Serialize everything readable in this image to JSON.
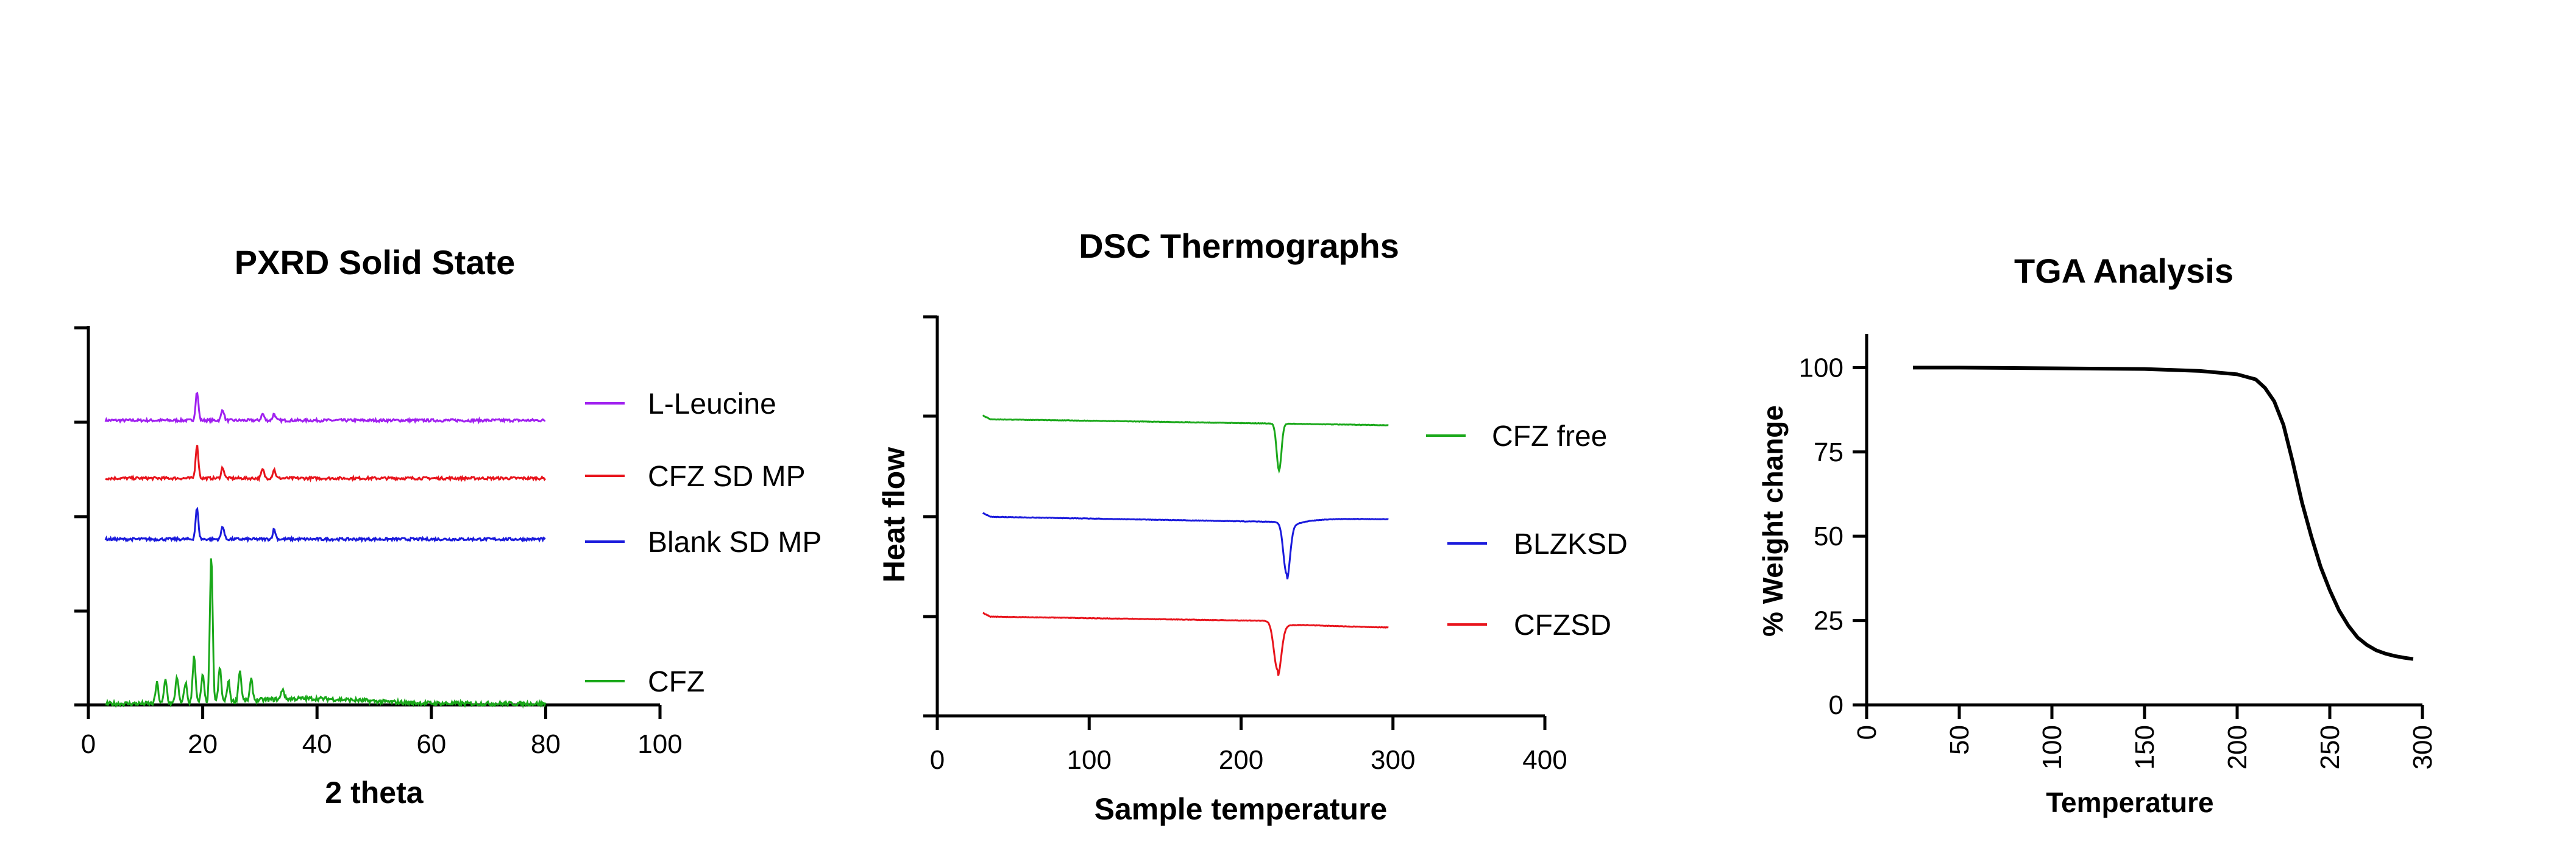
{
  "chart_data": [
    {
      "type": "line",
      "title": "PXRD Solid State",
      "xlabel": "2 theta",
      "ylabel": "",
      "xlim": [
        0,
        100
      ],
      "xticks": [
        "0",
        "20",
        "40",
        "60",
        "80",
        "100"
      ],
      "y_ticks_labeled": false,
      "x_range_data": [
        3,
        80
      ],
      "series": [
        {
          "name": "L-Leucine",
          "color": "#a020f0",
          "peaks": [
            [
              19,
              2.6
            ],
            [
              23.5,
              1.0
            ],
            [
              30.5,
              0.6
            ],
            [
              32.5,
              0.6
            ]
          ]
        },
        {
          "name": "CFZ SD MP",
          "color": "#e8141c",
          "peaks": [
            [
              19,
              3.0
            ],
            [
              23.5,
              1.0
            ],
            [
              30.5,
              0.8
            ],
            [
              32.5,
              0.8
            ]
          ]
        },
        {
          "name": "Blank SD MP",
          "color": "#1a1adc",
          "peaks": [
            [
              19,
              2.8
            ],
            [
              23.5,
              1.2
            ],
            [
              32.5,
              0.9
            ]
          ]
        },
        {
          "name": "CFZ",
          "color": "#1aa81a",
          "peaks": [
            [
              12,
              1.2
            ],
            [
              13.5,
              1.4
            ],
            [
              15.5,
              1.6
            ],
            [
              17,
              1.2
            ],
            [
              18.5,
              2.8
            ],
            [
              20,
              1.6
            ],
            [
              21.5,
              8.5
            ],
            [
              23,
              2.0
            ],
            [
              24.5,
              1.2
            ],
            [
              26.5,
              1.8
            ],
            [
              28.5,
              1.2
            ],
            [
              34,
              0.6
            ]
          ]
        }
      ],
      "grid": false,
      "legend_placement": "right"
    },
    {
      "type": "line",
      "title": "DSC Thermographs",
      "xlabel": "Sample temperature",
      "ylabel": "Heat flow",
      "xlim": [
        0,
        400
      ],
      "xticks": [
        "0",
        "100",
        "200",
        "300",
        "400"
      ],
      "y_ticks_labeled": false,
      "x_range_data": [
        30,
        297
      ],
      "series": [
        {
          "name": "CFZ free",
          "color": "#1aa81a",
          "dip_center": 225,
          "dip_depth": 0.45
        },
        {
          "name": "BLZKSD",
          "color": "#1a1adc",
          "dip_center": 230,
          "dip_depth": 0.55
        },
        {
          "name": "CFZSD",
          "color": "#e8141c",
          "dip_center": 224,
          "dip_depth": 0.55
        }
      ],
      "grid": false,
      "legend_placement": "right"
    },
    {
      "type": "line",
      "title": "TGA Analysis",
      "xlabel": "Temperature",
      "ylabel": "% Weight change",
      "xlim": [
        0,
        300
      ],
      "ylim": [
        0,
        110
      ],
      "xticks": [
        "0",
        "50",
        "100",
        "150",
        "200",
        "250",
        "300"
      ],
      "yticks": [
        "0",
        "25",
        "50",
        "75",
        "100"
      ],
      "series": [
        {
          "name": "",
          "color": "#000000",
          "x": [
            25,
            50,
            100,
            150,
            180,
            200,
            210,
            215,
            220,
            225,
            230,
            235,
            240,
            245,
            250,
            255,
            260,
            265,
            270,
            275,
            280,
            285,
            290,
            295
          ],
          "y": [
            100,
            100,
            99.8,
            99.6,
            99.0,
            98.0,
            96.5,
            94.0,
            90.0,
            83.0,
            72.0,
            60.0,
            50.0,
            41.0,
            34.0,
            28.0,
            23.5,
            20.0,
            17.8,
            16.2,
            15.2,
            14.5,
            14.0,
            13.6
          ]
        }
      ],
      "grid": false,
      "legend_placement": "none"
    }
  ]
}
